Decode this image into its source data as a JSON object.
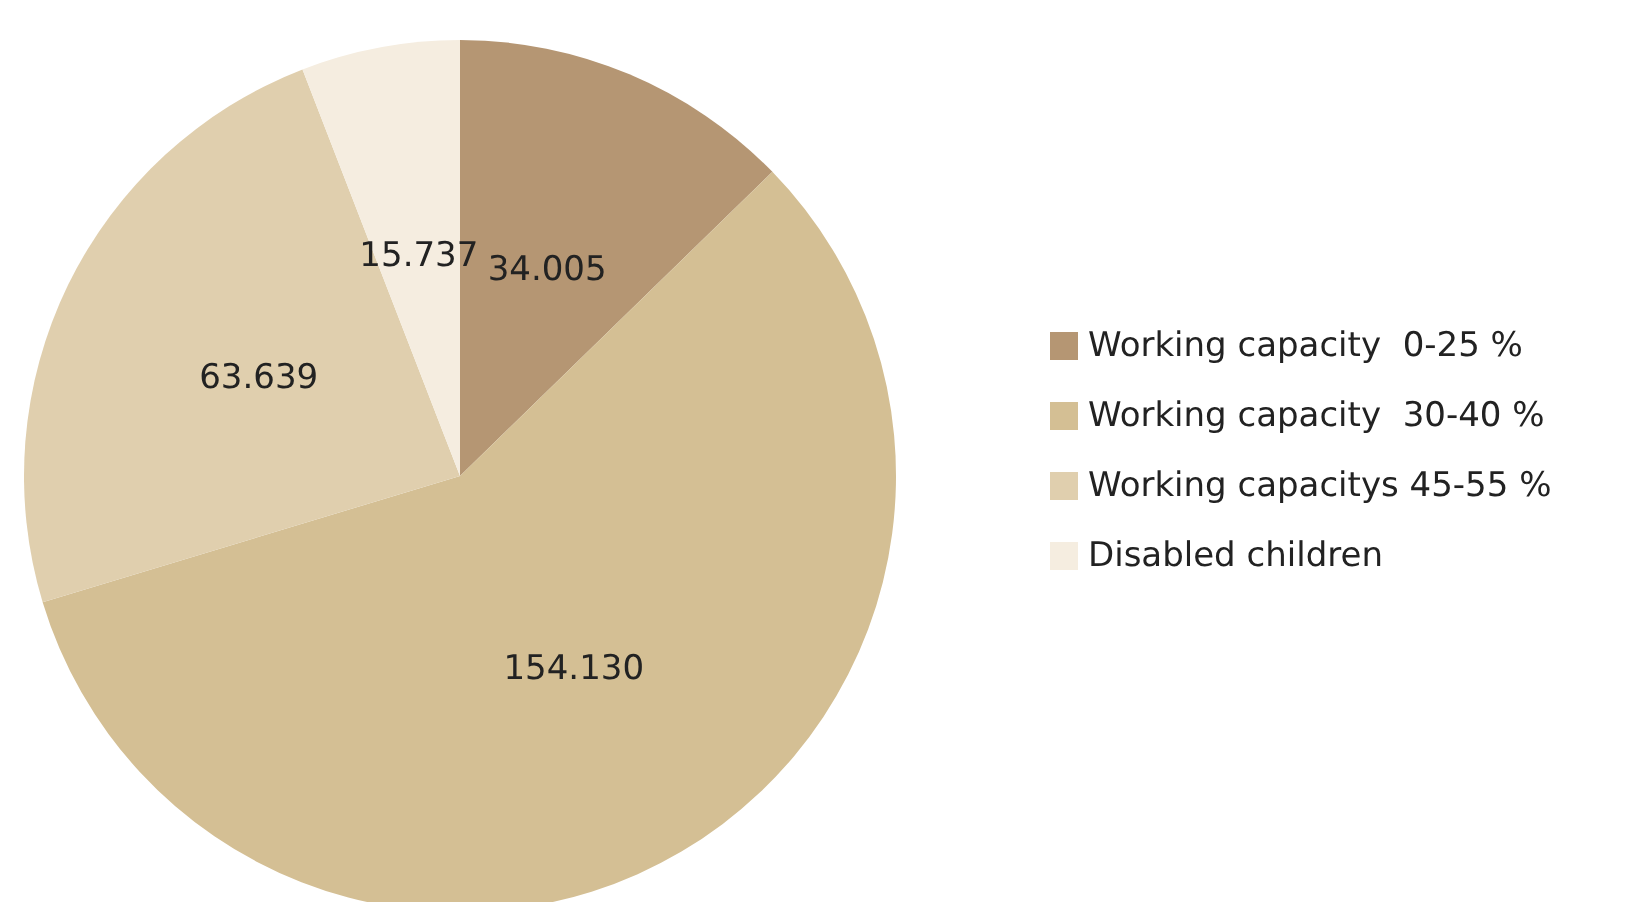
{
  "chart_data": {
    "type": "pie",
    "categories": [
      "Working capacity  0-25 %",
      "Working capacity  30-40 %",
      "Working capacitys 45-55 %",
      "Disabled children"
    ],
    "values": [
      34.005,
      154.13,
      63.639,
      15.737
    ],
    "value_labels": [
      "34.005",
      "154.130",
      "63.639",
      "15.737"
    ],
    "colors": [
      "#b59673",
      "#d4bf94",
      "#e0cfae",
      "#f5ede0"
    ],
    "legend": "right"
  }
}
